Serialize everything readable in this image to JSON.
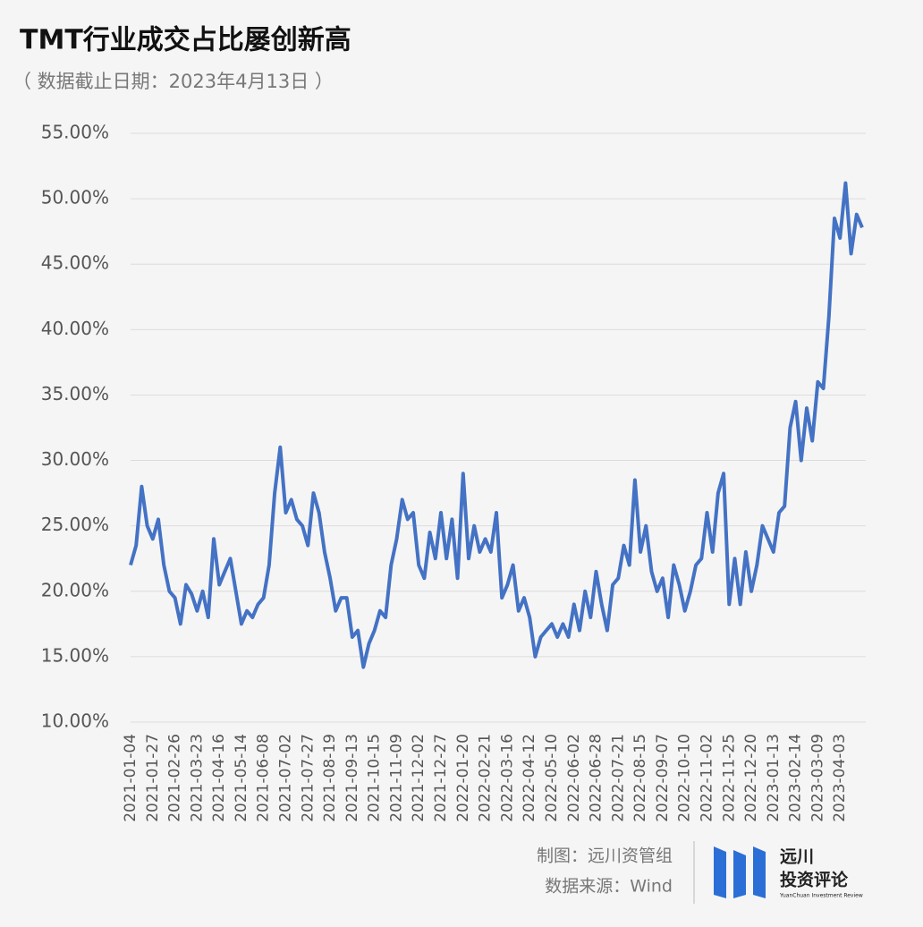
{
  "chart_data": {
    "type": "line",
    "title": "TMT行业成交占比屡创新高",
    "subtitle": "（ 数据截止日期：2023年4月13日 ）",
    "categories": [
      "2021-01-04",
      null,
      null,
      null,
      "2021-01-27",
      null,
      null,
      null,
      "2021-02-26",
      null,
      null,
      null,
      "2021-03-23",
      null,
      null,
      null,
      "2021-04-16",
      null,
      null,
      null,
      "2021-05-14",
      null,
      null,
      null,
      "2021-06-08",
      null,
      null,
      null,
      "2021-07-02",
      null,
      null,
      null,
      "2021-07-27",
      null,
      null,
      null,
      "2021-08-19",
      null,
      null,
      null,
      "2021-09-13",
      null,
      null,
      null,
      "2021-10-15",
      null,
      null,
      null,
      "2021-11-09",
      null,
      null,
      null,
      "2021-12-02",
      null,
      null,
      null,
      "2021-12-27",
      null,
      null,
      null,
      "2022-01-20",
      null,
      null,
      null,
      "2022-02-21",
      null,
      null,
      null,
      "2022-03-16",
      null,
      null,
      null,
      "2022-04-12",
      null,
      null,
      null,
      "2022-05-10",
      null,
      null,
      null,
      "2022-06-02",
      null,
      null,
      null,
      "2022-06-28",
      null,
      null,
      null,
      "2022-07-21",
      null,
      null,
      null,
      "2022-08-15",
      null,
      null,
      null,
      "2022-09-07",
      null,
      null,
      null,
      "2022-10-10",
      null,
      null,
      null,
      "2022-11-02",
      null,
      null,
      null,
      "2022-11-25",
      null,
      null,
      null,
      "2022-12-20",
      null,
      null,
      null,
      "2023-01-13",
      null,
      null,
      null,
      "2023-02-14",
      null,
      null,
      null,
      "2023-03-09",
      null,
      null,
      null,
      "2023-04-03",
      null,
      null,
      null,
      null
    ],
    "series": [
      {
        "color": "#4472c4",
        "values": [
          22,
          23.5,
          28,
          25,
          24,
          25.5,
          22,
          20,
          19.5,
          17.5,
          20.5,
          19.8,
          18.5,
          20,
          18,
          24,
          20.5,
          21.5,
          22.5,
          20,
          17.5,
          18.5,
          18,
          19,
          19.5,
          22,
          27.5,
          31,
          26,
          27,
          25.5,
          25,
          23.5,
          27.5,
          26,
          23,
          21,
          18.5,
          19.5,
          19.5,
          16.5,
          17,
          14.2,
          16,
          17,
          18.5,
          18,
          22,
          24,
          27,
          25.5,
          26,
          22,
          21,
          24.5,
          22.5,
          26,
          22.5,
          25.5,
          21,
          29,
          22.5,
          25,
          23,
          24,
          23,
          26,
          19.5,
          20.5,
          22,
          18.5,
          19.5,
          18,
          15,
          16.5,
          17,
          17.5,
          16.5,
          17.5,
          16.5,
          19,
          17,
          20,
          18,
          21.5,
          19,
          17,
          20.5,
          21,
          23.5,
          22,
          28.5,
          23,
          25,
          21.5,
          20,
          21,
          18,
          22,
          20.5,
          18.5,
          20,
          22,
          22.5,
          26,
          23,
          27.5,
          29,
          19,
          22.5,
          19,
          23,
          20,
          22,
          25,
          24,
          23,
          26,
          26.5,
          32.5,
          34.5,
          30,
          34,
          31.5,
          36,
          35.5,
          41,
          48.5,
          47,
          51.2,
          45.8,
          48.8,
          47.8
        ]
      }
    ],
    "ylim": [
      10,
      55
    ],
    "yticks": [
      {
        "value": 10,
        "label": "10.00%"
      },
      {
        "value": 15,
        "label": "15.00%"
      },
      {
        "value": 20,
        "label": "20.00%"
      },
      {
        "value": 25,
        "label": "25.00%"
      },
      {
        "value": 30,
        "label": "30.00%"
      },
      {
        "value": 35,
        "label": "35.00%"
      },
      {
        "value": 40,
        "label": "40.00%"
      },
      {
        "value": 45,
        "label": "45.00%"
      },
      {
        "value": 50,
        "label": "50.00%"
      },
      {
        "value": 55,
        "label": "55.00%"
      }
    ],
    "grid": true
  },
  "footer": {
    "credit": "制图：远川资管组",
    "source": "数据来源：Wind",
    "logo_name": "远川",
    "logo_sub": "投资评论",
    "logo_en": "YuanChuan Investment Review"
  }
}
